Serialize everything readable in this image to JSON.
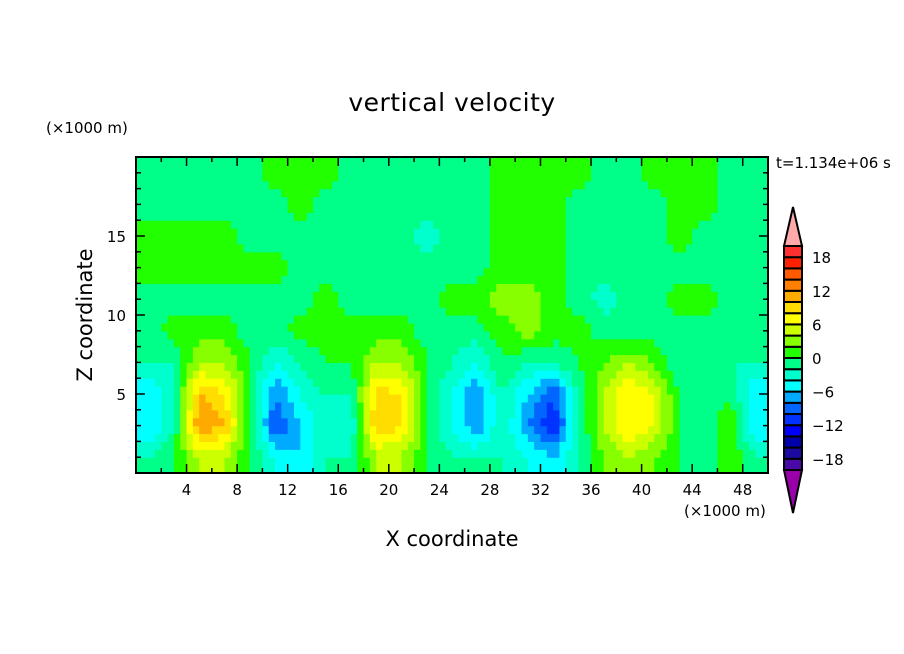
{
  "chart_data": {
    "type": "heatmap",
    "title": "vertical velocity",
    "xlabel": "X coordinate",
    "ylabel": "Z coordinate",
    "x_unit": "(×1000 m)",
    "y_unit": "(×1000 m)",
    "annotation": "t=1.134e+06 s",
    "xlim": [
      0,
      50
    ],
    "ylim": [
      0,
      20
    ],
    "x_ticks": [
      4,
      8,
      12,
      16,
      20,
      24,
      28,
      32,
      36,
      40,
      44,
      48
    ],
    "x_tick_labels": [
      "4",
      "8",
      "12",
      "16",
      "20",
      "24",
      "28",
      "32",
      "36",
      "40",
      "44",
      "48"
    ],
    "y_ticks": [
      5,
      10,
      15
    ],
    "y_tick_labels": [
      "5",
      "10",
      "15"
    ],
    "grid_x_centers": [
      1,
      3,
      5,
      7,
      9,
      11,
      13,
      15,
      17,
      19,
      21,
      23,
      25,
      27,
      29,
      31,
      33,
      35,
      37,
      39,
      41,
      43,
      45,
      47,
      49
    ],
    "grid_z_centers_top_to_bottom": [
      19,
      17,
      15,
      13,
      11,
      9,
      7,
      5,
      3,
      1
    ],
    "values": [
      [
        -1,
        -1,
        -1,
        -1,
        -1,
        1,
        1,
        1,
        -1,
        -1,
        -1,
        -1,
        -1,
        -1,
        1,
        1,
        1,
        1,
        -1,
        -1,
        1,
        1,
        1,
        -1,
        -1
      ],
      [
        -1,
        -1,
        -1,
        -1,
        -1,
        -1,
        1,
        -1,
        -1,
        -1,
        -1,
        -1,
        -1,
        -1,
        1,
        1,
        1,
        -1,
        -1,
        -1,
        -1,
        1,
        1,
        -1,
        -1
      ],
      [
        1,
        1,
        1,
        1,
        -1,
        -1,
        -1,
        -1,
        -1,
        -1,
        -1,
        -3,
        -1,
        -1,
        1,
        1,
        1,
        -1,
        -1,
        -1,
        -1,
        1,
        -1,
        -1,
        -1
      ],
      [
        1,
        1,
        1,
        1,
        1,
        1,
        -1,
        -1,
        -1,
        -1,
        -1,
        -1,
        -1,
        -1,
        1,
        1,
        1,
        -1,
        -1,
        -1,
        -1,
        -1,
        -1,
        -1,
        -1
      ],
      [
        -1,
        -1,
        -1,
        -1,
        -1,
        -1,
        -1,
        1,
        -1,
        -1,
        -1,
        -1,
        1,
        1,
        3,
        3,
        1,
        -1,
        -3,
        -1,
        -1,
        1,
        1,
        -1,
        -1
      ],
      [
        -1,
        1,
        1,
        1,
        -1,
        -1,
        1,
        1,
        1,
        1,
        1,
        -1,
        -1,
        -1,
        1,
        3,
        1,
        1,
        -1,
        -1,
        -1,
        -1,
        -1,
        -1,
        -1
      ],
      [
        -2,
        -2,
        4,
        4,
        0,
        -4,
        -2,
        0,
        0,
        4,
        4,
        0,
        -2,
        -4,
        0,
        -2,
        -2,
        0,
        2,
        4,
        2,
        -2,
        -2,
        -2,
        -2
      ],
      [
        -6,
        -2,
        10,
        8,
        0,
        -8,
        -4,
        -2,
        -2,
        9,
        8,
        0,
        -4,
        -8,
        -2,
        -6,
        -10,
        -2,
        4,
        8,
        6,
        0,
        -2,
        0,
        -6
      ],
      [
        -6,
        -2,
        12,
        10,
        0,
        -10,
        -6,
        -2,
        -4,
        10,
        8,
        0,
        -4,
        -8,
        -2,
        -8,
        -12,
        -2,
        4,
        8,
        6,
        0,
        -2,
        2,
        -6
      ],
      [
        -2,
        0,
        4,
        4,
        0,
        -4,
        -6,
        -2,
        -2,
        4,
        4,
        0,
        -2,
        -2,
        -2,
        -4,
        -6,
        -2,
        2,
        4,
        2,
        0,
        -2,
        2,
        -2
      ]
    ],
    "colorbar": {
      "levels": [
        -20,
        -18,
        -16,
        -14,
        -12,
        -10,
        -8,
        -6,
        -4,
        -2,
        0,
        2,
        4,
        6,
        8,
        10,
        12,
        14,
        16,
        18,
        20
      ],
      "labels": [
        "18",
        "12",
        "6",
        "0",
        "−6",
        "−12",
        "−18"
      ],
      "label_values": [
        18,
        12,
        6,
        0,
        -6,
        -12,
        -18
      ],
      "colors_low_to_high": [
        "#4a0aa8",
        "#1c0aa0",
        "#0000aa",
        "#0000ff",
        "#0033ff",
        "#0066ff",
        "#00aaff",
        "#00ffff",
        "#00ffcc",
        "#00ff88",
        "#22ff00",
        "#88ff00",
        "#ccff00",
        "#ffff00",
        "#ffdd00",
        "#ffaa00",
        "#ff7f00",
        "#ff5a00",
        "#ff2000",
        "#ff3030"
      ],
      "over_color": "#ffaaaa",
      "under_color": "#9900aa"
    }
  }
}
